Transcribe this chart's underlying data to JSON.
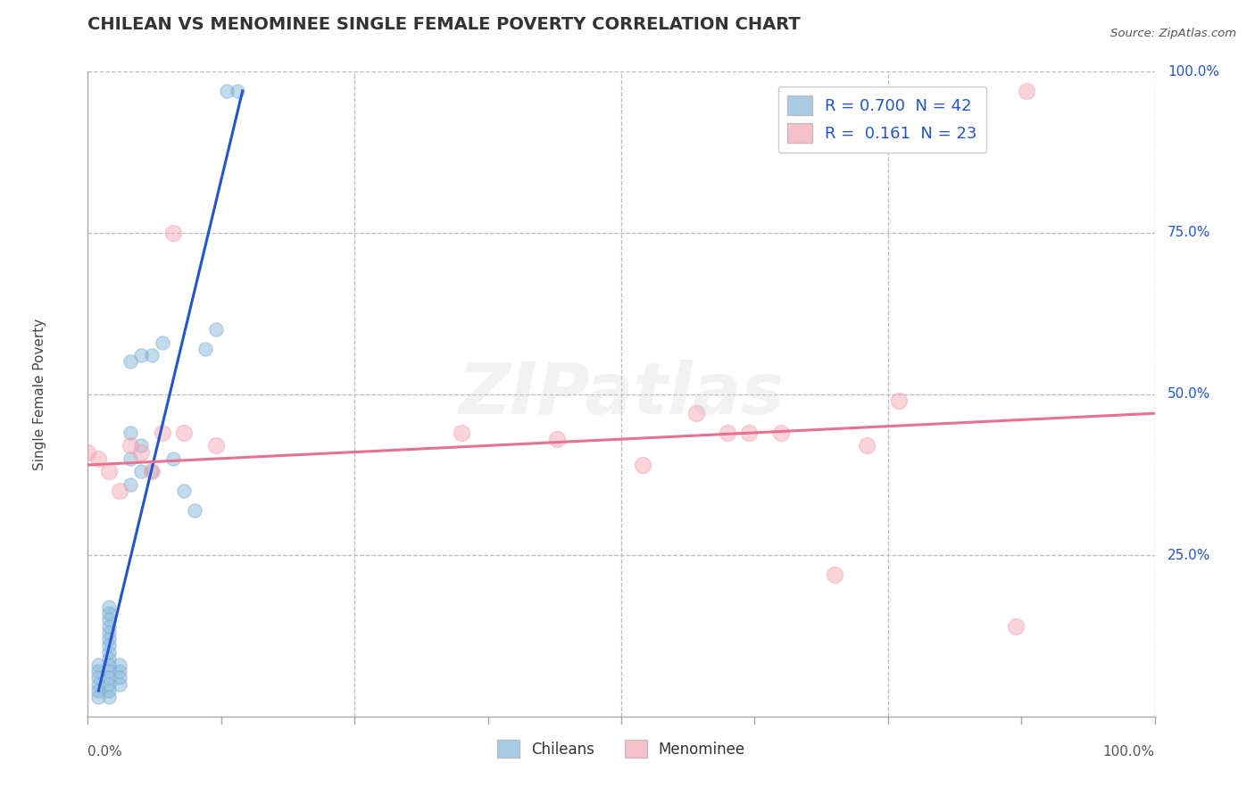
{
  "title": "CHILEAN VS MENOMINEE SINGLE FEMALE POVERTY CORRELATION CHART",
  "source": "Source: ZipAtlas.com",
  "ylabel": "Single Female Poverty",
  "xlim": [
    0.0,
    1.0
  ],
  "ylim": [
    0.0,
    1.0
  ],
  "chileans_x": [
    0.01,
    0.01,
    0.01,
    0.01,
    0.01,
    0.01,
    0.02,
    0.02,
    0.02,
    0.02,
    0.02,
    0.02,
    0.02,
    0.02,
    0.02,
    0.02,
    0.02,
    0.02,
    0.02,
    0.02,
    0.02,
    0.03,
    0.03,
    0.03,
    0.03,
    0.04,
    0.04,
    0.04,
    0.04,
    0.05,
    0.05,
    0.05,
    0.06,
    0.06,
    0.07,
    0.08,
    0.09,
    0.1,
    0.11,
    0.12,
    0.13,
    0.14
  ],
  "chileans_y": [
    0.03,
    0.04,
    0.05,
    0.06,
    0.07,
    0.08,
    0.03,
    0.04,
    0.05,
    0.06,
    0.07,
    0.08,
    0.09,
    0.1,
    0.11,
    0.12,
    0.13,
    0.14,
    0.15,
    0.16,
    0.17,
    0.05,
    0.06,
    0.07,
    0.08,
    0.36,
    0.4,
    0.44,
    0.55,
    0.38,
    0.42,
    0.56,
    0.38,
    0.56,
    0.58,
    0.4,
    0.35,
    0.32,
    0.57,
    0.6,
    0.97,
    0.97
  ],
  "menominee_x": [
    0.0,
    0.01,
    0.02,
    0.03,
    0.04,
    0.05,
    0.06,
    0.07,
    0.08,
    0.09,
    0.12,
    0.35,
    0.44,
    0.52,
    0.57,
    0.6,
    0.62,
    0.65,
    0.7,
    0.73,
    0.76,
    0.87,
    0.88
  ],
  "menominee_y": [
    0.41,
    0.4,
    0.38,
    0.35,
    0.42,
    0.41,
    0.38,
    0.44,
    0.75,
    0.44,
    0.42,
    0.44,
    0.43,
    0.39,
    0.47,
    0.44,
    0.44,
    0.44,
    0.22,
    0.42,
    0.49,
    0.14,
    0.97
  ],
  "blue_line_x": [
    0.01,
    0.145
  ],
  "blue_line_y": [
    0.04,
    0.97
  ],
  "pink_line_x": [
    0.0,
    1.0
  ],
  "pink_line_y": [
    0.39,
    0.47
  ],
  "chileans_color": "#7BAFD4",
  "menominee_color": "#F4A0B0",
  "blue_line_color": "#2255CC",
  "pink_line_color": "#E87090",
  "background_color": "#FFFFFF",
  "grid_color": "#BBBBBB",
  "title_color": "#333333",
  "legend_R1": "R = 0.700",
  "legend_N1": "N = 42",
  "legend_R2": "R =  0.161",
  "legend_N2": "N = 23",
  "watermark": "ZIPatlas",
  "label_chileans": "Chileans",
  "label_menominee": "Menominee",
  "ytick_right": [
    "100.0%",
    "75.0%",
    "50.0%",
    "25.0%"
  ],
  "ytick_right_vals": [
    1.0,
    0.75,
    0.5,
    0.25
  ],
  "xtick_left": "0.0%",
  "xtick_right": "100.0%"
}
